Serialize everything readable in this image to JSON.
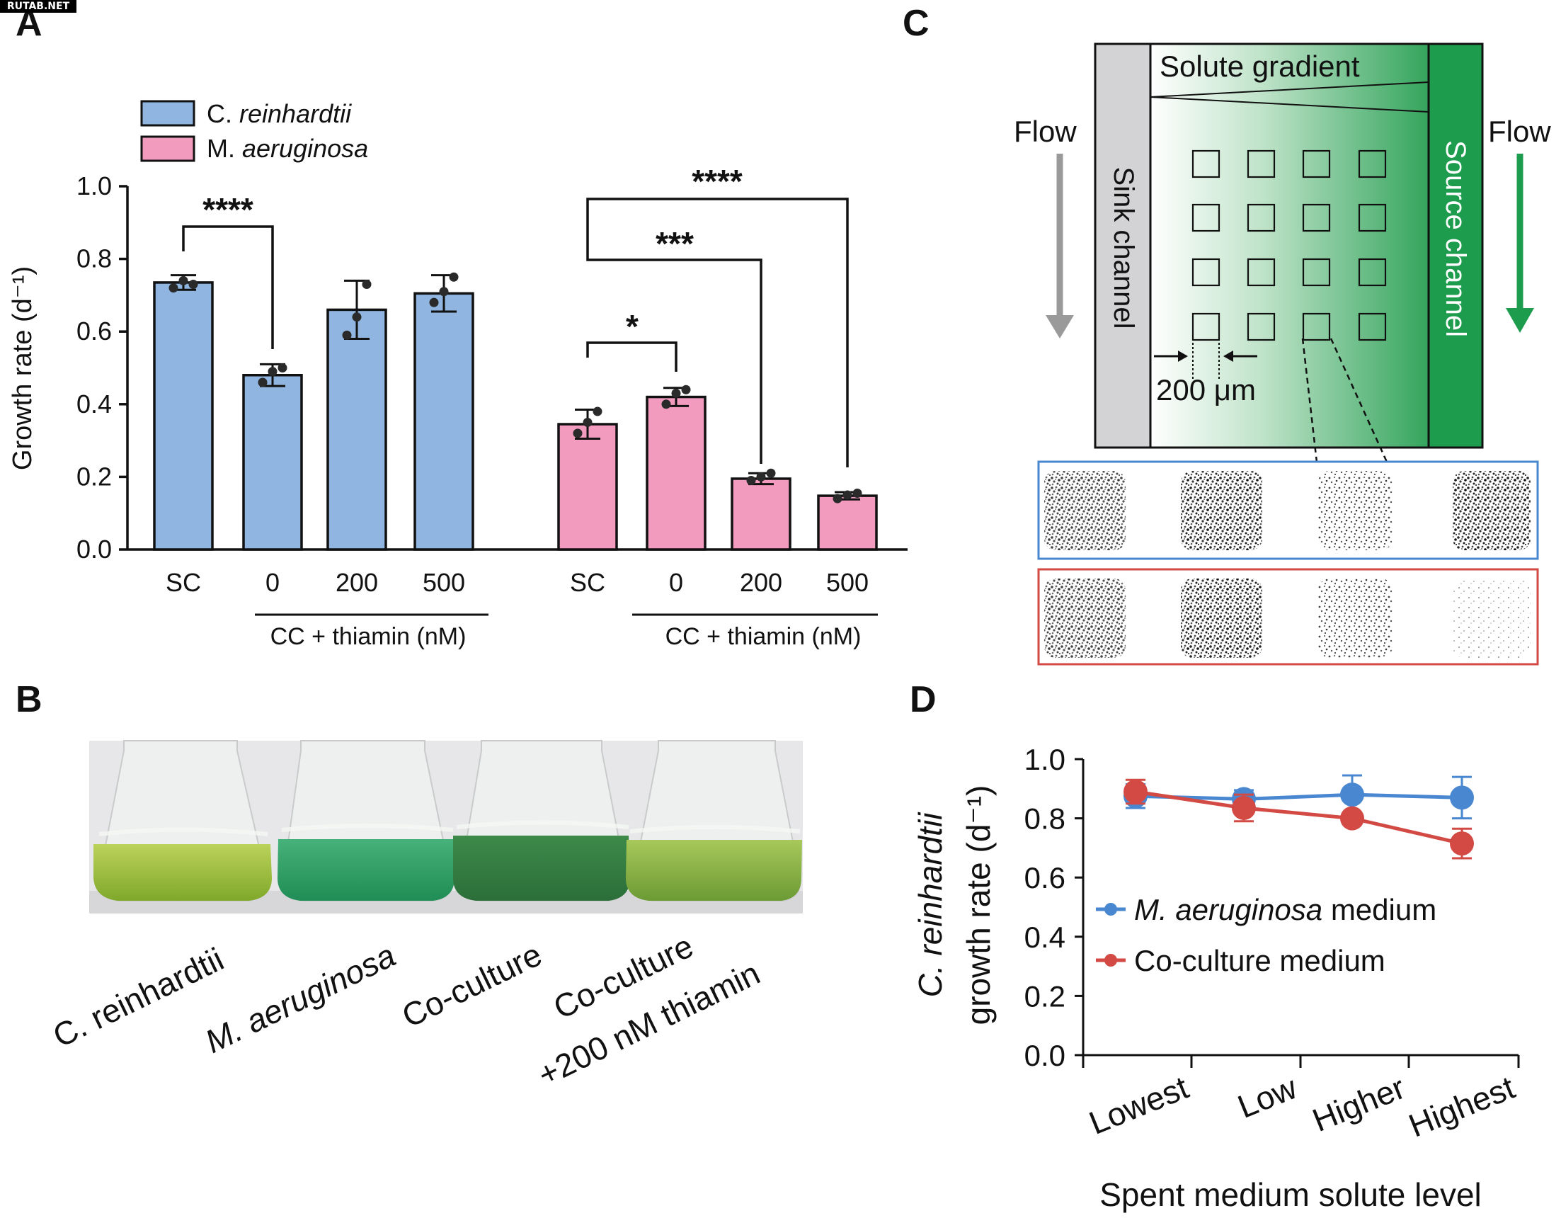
{
  "watermark": "RUTAB.NET",
  "panels": {
    "A": "A",
    "B": "B",
    "C": "C",
    "D": "D"
  },
  "colors": {
    "blue": "#8FB5E0",
    "pink": "#F29BBE",
    "dot": "#2a2a2a",
    "lineBlue": "#4A87D1",
    "lineRed": "#D34A45",
    "green": "#1E9C4E",
    "flowGray": "#9a9a9a",
    "flowGreen": "#1E9C4E"
  },
  "chart_data": [
    {
      "panel": "A",
      "type": "bar",
      "ylabel": "Growth rate (d⁻¹)",
      "ylim": [
        0,
        1.0
      ],
      "yticks": [
        "0.0",
        "0.2",
        "0.4",
        "0.6",
        "0.8",
        "1.0"
      ],
      "legend": [
        {
          "prefix": "C. ",
          "species": "reinhardtii"
        },
        {
          "prefix": "M. ",
          "species": "aeruginosa"
        }
      ],
      "groups": [
        {
          "series": "C. reinhardtii",
          "categories": [
            "SC",
            "0",
            "200",
            "500"
          ],
          "values": [
            0.735,
            0.48,
            0.66,
            0.705
          ],
          "errors": [
            0.02,
            0.03,
            0.08,
            0.05
          ],
          "points": [
            [
              0.72,
              0.74,
              0.73
            ],
            [
              0.46,
              0.49,
              0.5
            ],
            [
              0.59,
              0.64,
              0.73
            ],
            [
              0.68,
              0.71,
              0.75
            ]
          ],
          "sublabel": "CC + thiamin (nM)"
        },
        {
          "series": "M. aeruginosa",
          "categories": [
            "SC",
            "0",
            "200",
            "500"
          ],
          "values": [
            0.345,
            0.42,
            0.195,
            0.148
          ],
          "errors": [
            0.04,
            0.025,
            0.015,
            0.01
          ],
          "points": [
            [
              0.32,
              0.35,
              0.38
            ],
            [
              0.4,
              0.43,
              0.44
            ],
            [
              0.19,
              0.2,
              0.21
            ],
            [
              0.14,
              0.15,
              0.155
            ]
          ],
          "sublabel": "CC + thiamin (nM)"
        }
      ],
      "significance": [
        "****",
        "*",
        "***",
        "****"
      ]
    },
    {
      "panel": "D",
      "type": "line",
      "ylabel_species": "C. reinhardtii",
      "ylabel_rest": "growth rate (d⁻¹)",
      "xlabel": "Spent medium solute level",
      "categories": [
        "Lowest",
        "Low",
        "Higher",
        "Highest"
      ],
      "ylim": [
        0,
        1.0
      ],
      "yticks": [
        "0.0",
        "0.2",
        "0.4",
        "0.6",
        "0.8",
        "1.0"
      ],
      "series": [
        {
          "name_italic": "M. aeruginosa",
          "name_rest": " medium",
          "values": [
            0.875,
            0.865,
            0.88,
            0.87
          ],
          "errors": [
            0.04,
            0.03,
            0.065,
            0.07
          ]
        },
        {
          "name_italic": "",
          "name_rest": "Co-culture medium",
          "values": [
            0.89,
            0.835,
            0.8,
            0.715
          ],
          "errors": [
            0.04,
            0.045,
            0.02,
            0.05
          ]
        }
      ]
    }
  ],
  "panelB": {
    "labels": [
      "C. reinhardtii",
      "M. aeruginosa",
      "Co-culture",
      "Co-culture",
      "+200 nM thiamin"
    ]
  },
  "panelC": {
    "solute_gradient": "Solute gradient",
    "flow_left": "Flow",
    "flow_right": "Flow",
    "sink": "Sink channel",
    "source": "Source channel",
    "scale": "200 μm"
  }
}
